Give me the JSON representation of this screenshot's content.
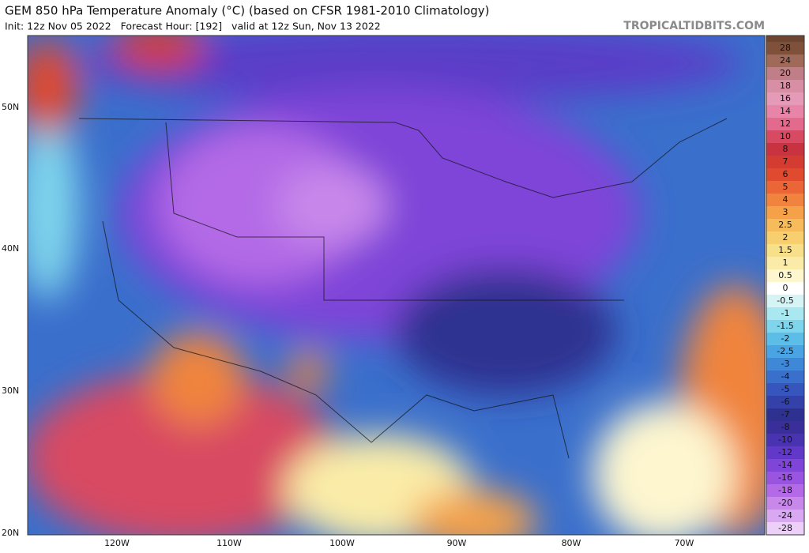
{
  "header": {
    "title": "GEM 850 hPa Temperature Anomaly (°C) (based on CFSR 1981-2010 Climatology)",
    "subtitle": "Init: 12z Nov 05 2022   Forecast Hour: [192]   valid at 12z Sun, Nov 13 2022",
    "site": "TROPICALTIDBITS.COM"
  },
  "map": {
    "latitude_labels": [
      "50N",
      "40N",
      "30N",
      "20N"
    ],
    "longitude_labels": [
      "120W",
      "110W",
      "100W",
      "90W",
      "80W",
      "70W"
    ]
  },
  "colorbar": {
    "levels": [
      28,
      24,
      20,
      18,
      16,
      14,
      12,
      10,
      8,
      7,
      6,
      5,
      4,
      3,
      2.5,
      2,
      1.5,
      1,
      0.5,
      0,
      -0.5,
      -1,
      -1.5,
      -2,
      -2.5,
      -3,
      -4,
      -5,
      -6,
      -7,
      -8,
      -10,
      -12,
      -14,
      -16,
      -18,
      -20,
      -24,
      -28
    ],
    "colors": [
      "#80513a",
      "#a06a5a",
      "#c07f88",
      "#d88ea5",
      "#e59ab8",
      "#e884a8",
      "#e36a8c",
      "#d84a62",
      "#c8333f",
      "#d43c32",
      "#e04a2e",
      "#ea6636",
      "#f0843e",
      "#f4a14a",
      "#f6bb5a",
      "#f7cf6e",
      "#f8e08a",
      "#faeca8",
      "#fdf6cf",
      "#ffffff",
      "#d6f4f6",
      "#a9e8f0",
      "#7fd5ec",
      "#5bbde8",
      "#4aa3e2",
      "#3f88d8",
      "#3a6fcc",
      "#3656bd",
      "#3341a8",
      "#2e3190",
      "#3a2f9a",
      "#4a33b0",
      "#6238c8",
      "#7e45d8",
      "#9a55e0",
      "#b46ae6",
      "#c888ea",
      "#d8a8f0",
      "#ecd0f8"
    ]
  }
}
